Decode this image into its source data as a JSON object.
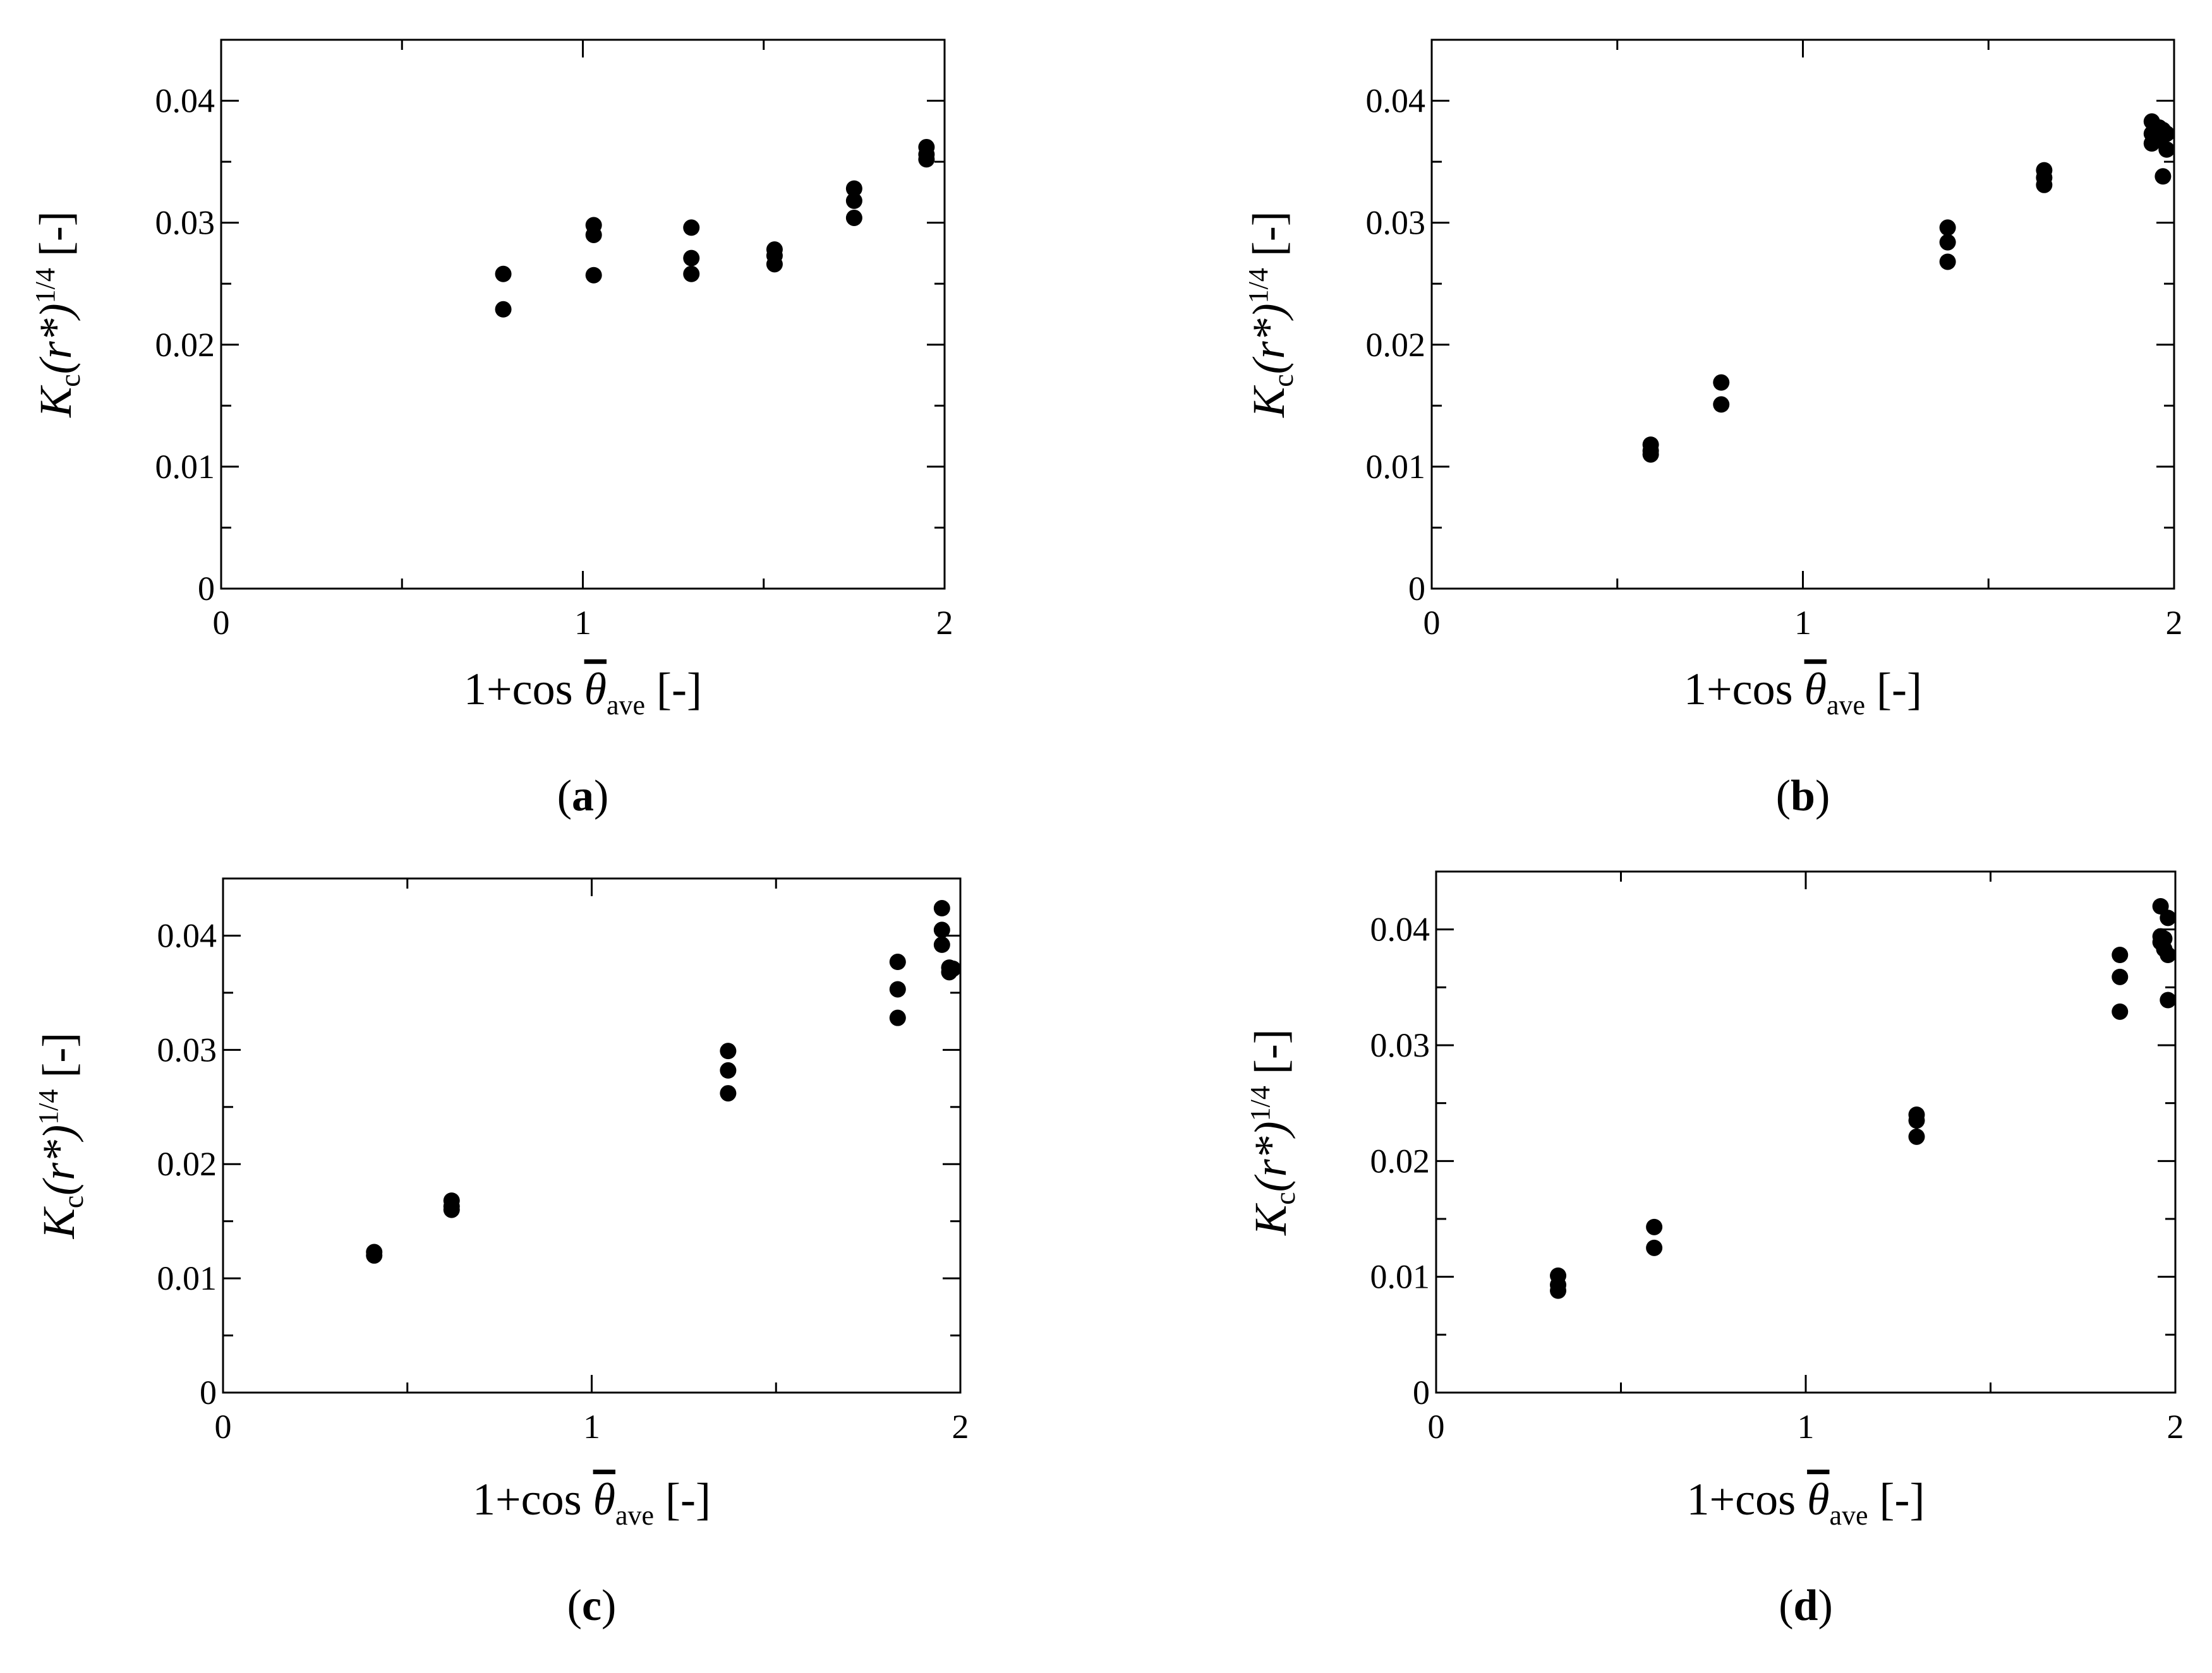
{
  "figure": {
    "marker_color": "#000000",
    "axis_color": "#000000"
  },
  "chart_data": [
    {
      "type": "scatter",
      "caption_letter": "a",
      "xlabel": {
        "main": "1+cos ",
        "symbol": "θ",
        "subscript": "ave",
        "unit": "[-]"
      },
      "ylabel": {
        "main": "K",
        "sub": "c",
        "mid": "(r*)",
        "sup": "1/4",
        "unit": "[-]"
      },
      "xlim": [
        0,
        2
      ],
      "ylim": [
        0,
        0.045
      ],
      "xticks": [
        0,
        1,
        2
      ],
      "xtick_labels": [
        "0",
        "1",
        "2"
      ],
      "yticks": [
        0,
        0.01,
        0.02,
        0.03,
        0.04
      ],
      "ytick_labels": [
        "0",
        "0.01",
        "0.02",
        "0.03",
        "0.04"
      ],
      "points": [
        [
          0.78,
          0.0258
        ],
        [
          0.78,
          0.0229
        ],
        [
          1.03,
          0.0298
        ],
        [
          1.03,
          0.029
        ],
        [
          1.03,
          0.0257
        ],
        [
          1.3,
          0.0296
        ],
        [
          1.3,
          0.0271
        ],
        [
          1.3,
          0.0258
        ],
        [
          1.53,
          0.0278
        ],
        [
          1.53,
          0.0273
        ],
        [
          1.53,
          0.0266
        ],
        [
          1.75,
          0.0328
        ],
        [
          1.75,
          0.0318
        ],
        [
          1.75,
          0.0304
        ],
        [
          1.95,
          0.0362
        ],
        [
          1.95,
          0.0356
        ],
        [
          1.95,
          0.0352
        ]
      ]
    },
    {
      "type": "scatter",
      "caption_letter": "b",
      "xlabel": {
        "main": "1+cos ",
        "symbol": "θ",
        "subscript": "ave",
        "unit": "[-]"
      },
      "ylabel": {
        "main": "K",
        "sub": "c",
        "mid": "(r*)",
        "sup": "1/4",
        "unit": "[-]"
      },
      "xlim": [
        0,
        2
      ],
      "ylim": [
        0,
        0.045
      ],
      "xticks": [
        0,
        1,
        2
      ],
      "xtick_labels": [
        "0",
        "1",
        "2"
      ],
      "yticks": [
        0,
        0.01,
        0.02,
        0.03,
        0.04
      ],
      "ytick_labels": [
        "0",
        "0.01",
        "0.02",
        "0.03",
        "0.04"
      ],
      "points": [
        [
          0.59,
          0.0118
        ],
        [
          0.59,
          0.0113
        ],
        [
          0.59,
          0.011
        ],
        [
          0.78,
          0.0169
        ],
        [
          0.78,
          0.0151
        ],
        [
          1.39,
          0.0296
        ],
        [
          1.39,
          0.0284
        ],
        [
          1.39,
          0.0268
        ],
        [
          1.65,
          0.0343
        ],
        [
          1.65,
          0.0337
        ],
        [
          1.65,
          0.0331
        ],
        [
          1.94,
          0.0383
        ],
        [
          1.94,
          0.0373
        ],
        [
          1.94,
          0.0365
        ],
        [
          1.96,
          0.0378
        ],
        [
          1.96,
          0.0368
        ],
        [
          1.97,
          0.0376
        ],
        [
          1.97,
          0.0338
        ],
        [
          1.98,
          0.0373
        ],
        [
          1.98,
          0.036
        ]
      ]
    },
    {
      "type": "scatter",
      "caption_letter": "c",
      "xlabel": {
        "main": "1+cos ",
        "symbol": "θ",
        "subscript": "ave",
        "unit": "[-]"
      },
      "ylabel": {
        "main": "K",
        "sub": "c",
        "mid": "(r*)",
        "sup": "1/4",
        "unit": "[-]"
      },
      "xlim": [
        0,
        2
      ],
      "ylim": [
        0,
        0.045
      ],
      "xticks": [
        0,
        1,
        2
      ],
      "xtick_labels": [
        "0",
        "1",
        "2"
      ],
      "yticks": [
        0,
        0.01,
        0.02,
        0.03,
        0.04
      ],
      "ytick_labels": [
        "0",
        "0.01",
        "0.02",
        "0.03",
        "0.04"
      ],
      "points": [
        [
          0.41,
          0.0123
        ],
        [
          0.41,
          0.012
        ],
        [
          0.62,
          0.0168
        ],
        [
          0.62,
          0.0163
        ],
        [
          0.62,
          0.016
        ],
        [
          1.37,
          0.0299
        ],
        [
          1.37,
          0.0282
        ],
        [
          1.37,
          0.0262
        ],
        [
          1.83,
          0.0377
        ],
        [
          1.83,
          0.0353
        ],
        [
          1.83,
          0.0328
        ],
        [
          1.95,
          0.0424
        ],
        [
          1.95,
          0.0405
        ],
        [
          1.95,
          0.0392
        ],
        [
          1.97,
          0.0372
        ],
        [
          1.97,
          0.0368
        ],
        [
          1.98,
          0.0371
        ]
      ]
    },
    {
      "type": "scatter",
      "caption_letter": "d",
      "xlabel": {
        "main": "1+cos ",
        "symbol": "θ",
        "subscript": "ave",
        "unit": "[-]"
      },
      "ylabel": {
        "main": "K",
        "sub": "c",
        "mid": "(r*)",
        "sup": "1/4",
        "unit": "[-]"
      },
      "xlim": [
        0,
        2
      ],
      "ylim": [
        0,
        0.045
      ],
      "xticks": [
        0,
        1,
        2
      ],
      "xtick_labels": [
        "0",
        "1",
        "2"
      ],
      "yticks": [
        0,
        0.01,
        0.02,
        0.03,
        0.04
      ],
      "ytick_labels": [
        "0",
        "0.01",
        "0.02",
        "0.03",
        "0.04"
      ],
      "points": [
        [
          0.33,
          0.0101
        ],
        [
          0.33,
          0.0093
        ],
        [
          0.33,
          0.0088
        ],
        [
          0.59,
          0.0143
        ],
        [
          0.59,
          0.0125
        ],
        [
          1.3,
          0.024
        ],
        [
          1.3,
          0.0235
        ],
        [
          1.3,
          0.0221
        ],
        [
          1.85,
          0.0378
        ],
        [
          1.85,
          0.0359
        ],
        [
          1.85,
          0.0329
        ],
        [
          1.96,
          0.042
        ],
        [
          1.96,
          0.0394
        ],
        [
          1.96,
          0.0389
        ],
        [
          1.97,
          0.0392
        ],
        [
          1.97,
          0.0383
        ],
        [
          1.98,
          0.041
        ],
        [
          1.98,
          0.0378
        ],
        [
          1.98,
          0.0339
        ]
      ]
    }
  ]
}
